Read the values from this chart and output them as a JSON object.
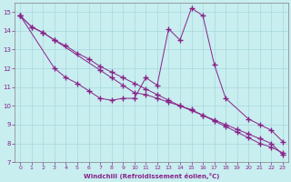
{
  "xlabel": "Windchill (Refroidissement éolien,°C)",
  "bg_color": "#c8eef0",
  "line_color": "#882288",
  "grid_color": "#a8d8dc",
  "xlim": [
    -0.5,
    23.5
  ],
  "ylim": [
    7,
    15.5
  ],
  "xticks": [
    0,
    1,
    2,
    3,
    4,
    5,
    6,
    7,
    8,
    9,
    10,
    11,
    12,
    13,
    14,
    15,
    16,
    17,
    18,
    19,
    20,
    21,
    22,
    23
  ],
  "yticks": [
    7,
    8,
    9,
    10,
    11,
    12,
    13,
    14,
    15
  ],
  "line1_x": [
    0,
    1,
    2,
    3,
    4,
    5,
    6,
    7,
    8,
    9,
    10,
    11,
    12,
    13,
    14,
    15,
    16,
    17,
    18,
    19,
    20,
    21,
    22,
    23
  ],
  "line1_y": [
    14.8,
    14.2,
    13.9,
    13.5,
    13.2,
    12.8,
    12.5,
    12.1,
    11.8,
    11.5,
    11.2,
    10.9,
    10.6,
    10.3,
    10.0,
    9.8,
    9.5,
    9.2,
    8.9,
    8.6,
    8.3,
    8.0,
    7.8,
    7.5
  ],
  "line2_x": [
    0,
    3,
    4,
    5,
    6,
    7,
    8,
    9,
    10,
    11,
    12,
    13,
    14,
    15,
    16,
    17,
    18,
    20,
    21,
    22,
    23
  ],
  "line2_y": [
    14.8,
    12.0,
    11.5,
    11.2,
    10.8,
    10.4,
    10.3,
    10.4,
    10.4,
    11.5,
    11.1,
    14.1,
    13.5,
    15.2,
    14.8,
    12.2,
    10.4,
    9.3,
    9.0,
    8.7,
    8.1
  ],
  "line3_x": [
    0,
    1,
    2,
    3,
    7,
    8,
    9,
    10,
    11,
    12,
    13,
    14,
    15,
    16,
    17,
    18,
    19,
    20,
    21,
    22,
    23
  ],
  "line3_y": [
    14.8,
    14.2,
    13.9,
    13.5,
    11.9,
    11.5,
    11.1,
    10.7,
    10.6,
    10.4,
    10.2,
    10.0,
    9.75,
    9.5,
    9.25,
    9.0,
    8.75,
    8.5,
    8.25,
    8.0,
    7.4
  ]
}
